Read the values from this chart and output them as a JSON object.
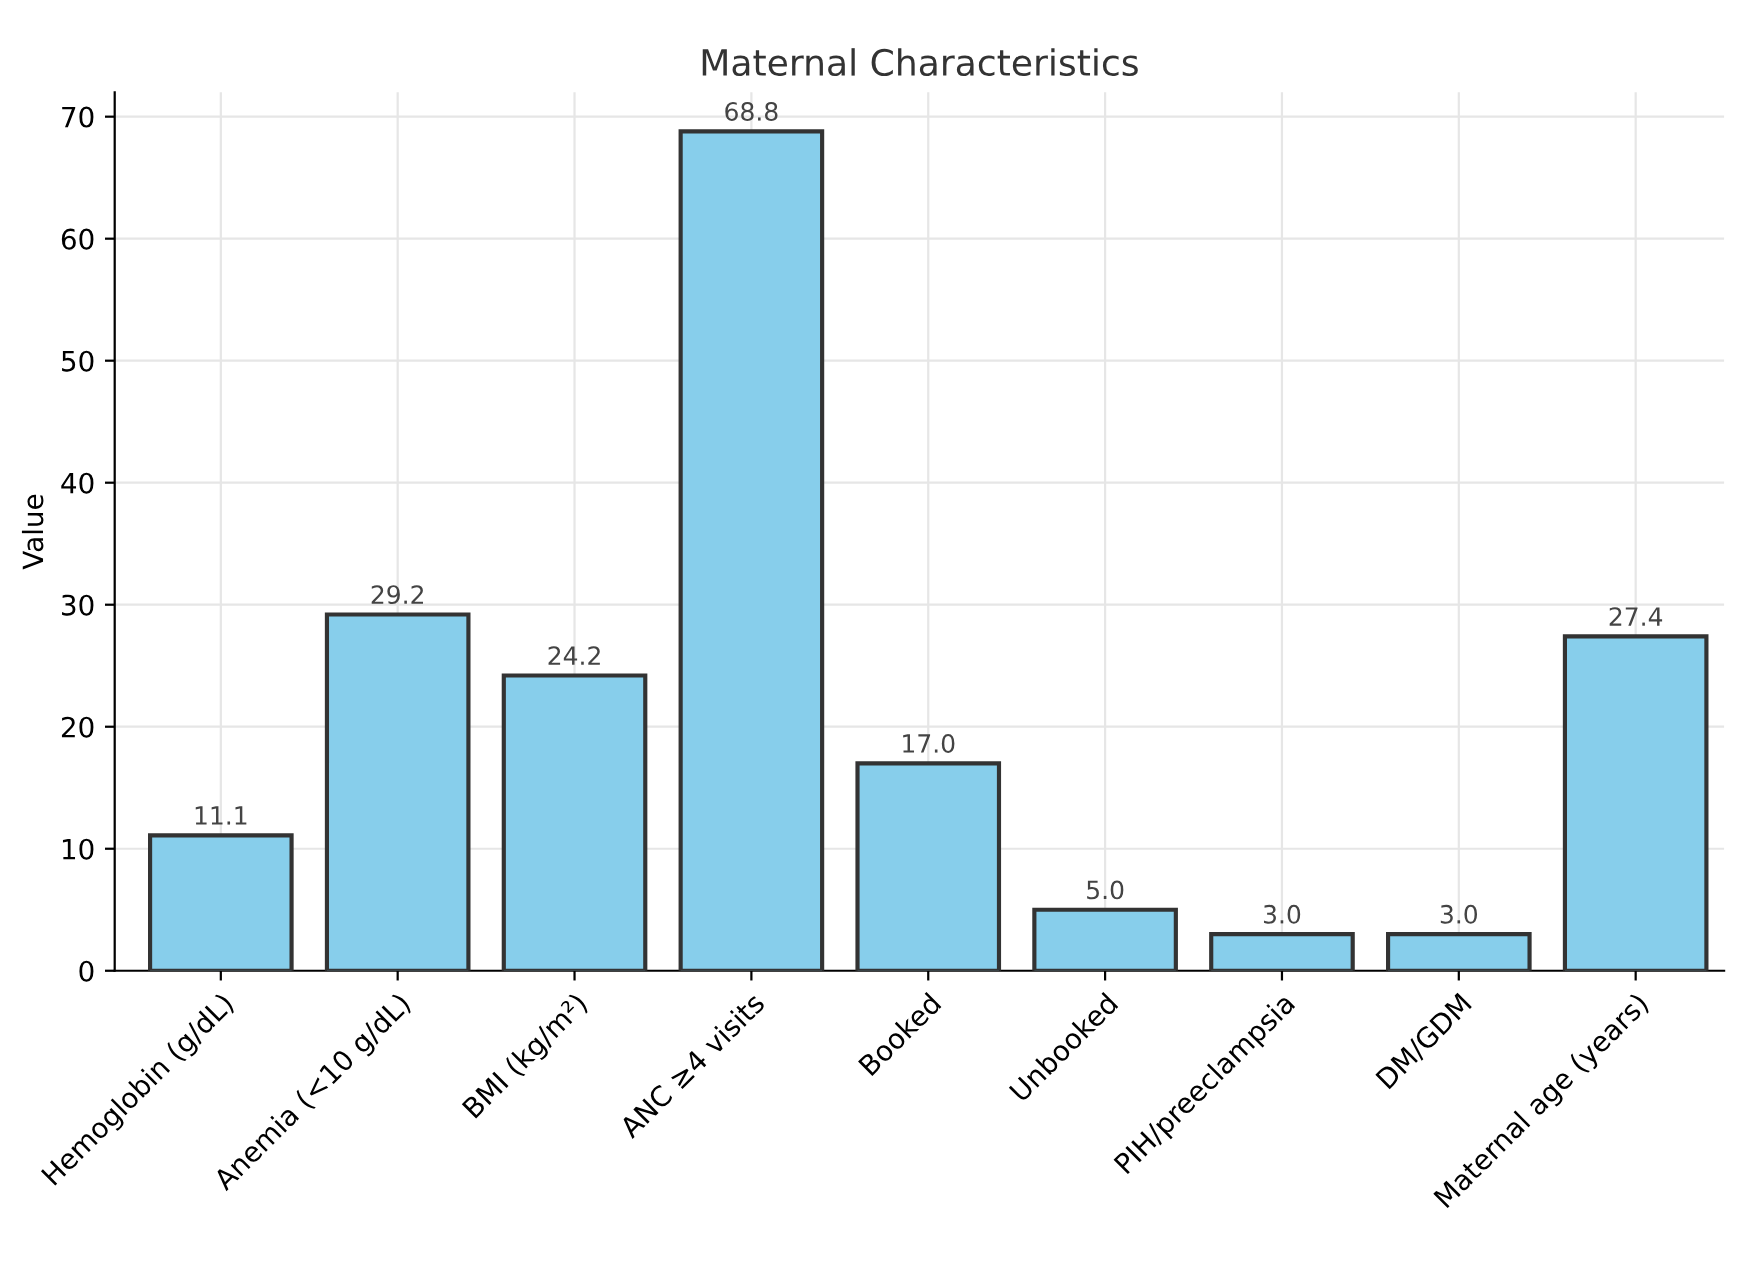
{
  "chart_data": {
    "type": "bar",
    "title": "Maternal Characteristics",
    "ylabel": "Value",
    "categories": [
      "Hemoglobin (g/dL)",
      "Anemia (<10 g/dL)",
      "BMI (kg/m²)",
      "ANC ≥4 visits",
      "Booked",
      "Unbooked",
      "PIH/preeclampsia",
      "DM/GDM",
      "Maternal age (years)"
    ],
    "values": [
      11.1,
      29.2,
      24.2,
      68.8,
      17.0,
      5.0,
      3.0,
      3.0,
      27.4
    ],
    "value_labels": [
      "11.1",
      "29.2",
      "24.2",
      "68.8",
      "17.0",
      "5.0",
      "3.0",
      "3.0",
      "27.4"
    ],
    "color": "#87ceeb",
    "ylim": [
      0,
      72
    ],
    "yticks": [
      0,
      10,
      20,
      30,
      40,
      50,
      60,
      70
    ],
    "grid": true
  }
}
